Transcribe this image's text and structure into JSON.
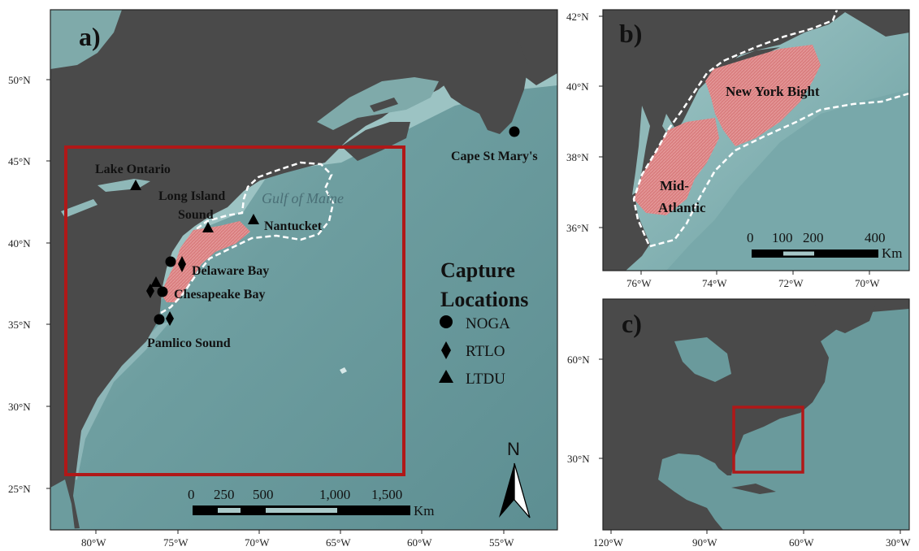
{
  "panels": {
    "a": {
      "letter": "a)",
      "lat_ticks": [
        "50°N",
        "45°N",
        "40°N",
        "35°N",
        "30°N",
        "25°N"
      ],
      "lon_ticks": [
        "80°W",
        "75°W",
        "70°W",
        "65°W",
        "60°W",
        "55°W"
      ],
      "places": {
        "lake_ontario": "Lake Ontario",
        "long_island_1": "Long Island",
        "long_island_2": "Sound",
        "gulf_of_maine": "Gulf of Maine",
        "nantucket": "Nantucket",
        "delaware_bay": "Delaware Bay",
        "chesapeake_bay": "Chesapeake Bay",
        "pamlico_sound": "Pamlico Sound",
        "cape_st_marys": "Cape St Mary's"
      },
      "legend": {
        "title_1": "Capture",
        "title_2": "Locations",
        "items": [
          "NOGA",
          "RTLO",
          "LTDU"
        ],
        "symbols": [
          "circle",
          "diamond",
          "triangle"
        ]
      },
      "scale": {
        "labels": [
          "0",
          "250",
          "500",
          "1,000",
          "1,500"
        ],
        "unit": "Km"
      },
      "north_label": "N"
    },
    "b": {
      "letter": "b)",
      "lat_ticks": [
        "42°N",
        "40°N",
        "38°N",
        "36°N"
      ],
      "lon_ticks": [
        "76°W",
        "74°W",
        "72°W",
        "70°W"
      ],
      "places": {
        "new_york_bight": "New York  Bight",
        "mid_1": "Mid-",
        "mid_2": "Atlantic"
      },
      "scale": {
        "labels": [
          "0",
          "100",
          "200",
          "400"
        ],
        "unit": "Km"
      }
    },
    "c": {
      "letter": "c)",
      "lat_ticks": [
        "60°N",
        "30°N"
      ],
      "lon_ticks": [
        "120°W",
        "90°W",
        "60°W",
        "30°W"
      ]
    }
  },
  "colors": {
    "land": "#4a4a4a",
    "ocean": "#6a9a9a",
    "shelf": "#9fc6c6",
    "study_area": "#d9787a",
    "box": "#b01818",
    "boundary": "#ffffff"
  }
}
